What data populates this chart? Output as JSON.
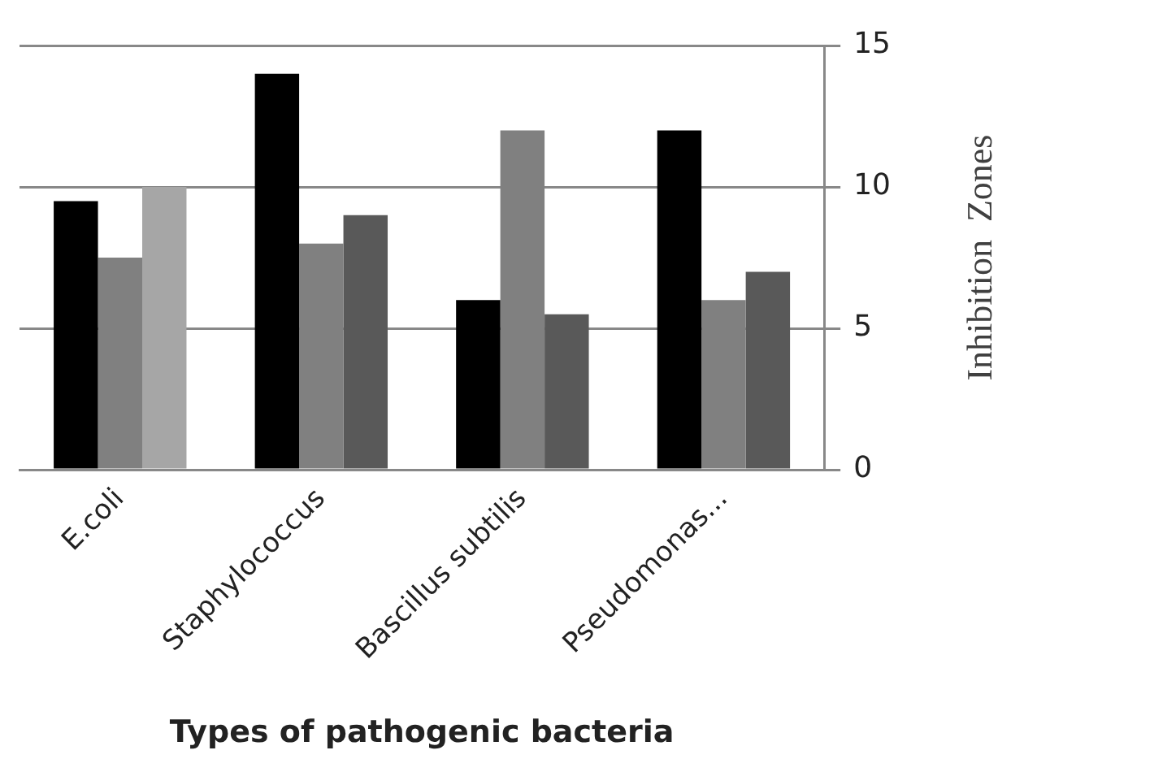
{
  "chart_data": {
    "type": "bar",
    "xlabel": "Types of pathogenic bacteria",
    "ylabel": "Inhibition  Zones",
    "categories": [
      "E.coli",
      "Staphylococcus",
      "Bascillus subtilis",
      "Pseudomonas..."
    ],
    "series": [
      {
        "color": "#000000",
        "values": [
          9.5,
          14,
          6,
          12
        ]
      },
      {
        "color": "#808080",
        "values": [
          7.5,
          8,
          12,
          6
        ]
      },
      {
        "colors": [
          "#a6a6a6",
          "#595959",
          "#595959",
          "#595959"
        ],
        "values": [
          10,
          9,
          5.5,
          7
        ]
      }
    ],
    "ylim": [
      0,
      15
    ],
    "yticks": [
      0,
      5,
      10,
      15
    ],
    "grid": "y",
    "legend": false
  }
}
